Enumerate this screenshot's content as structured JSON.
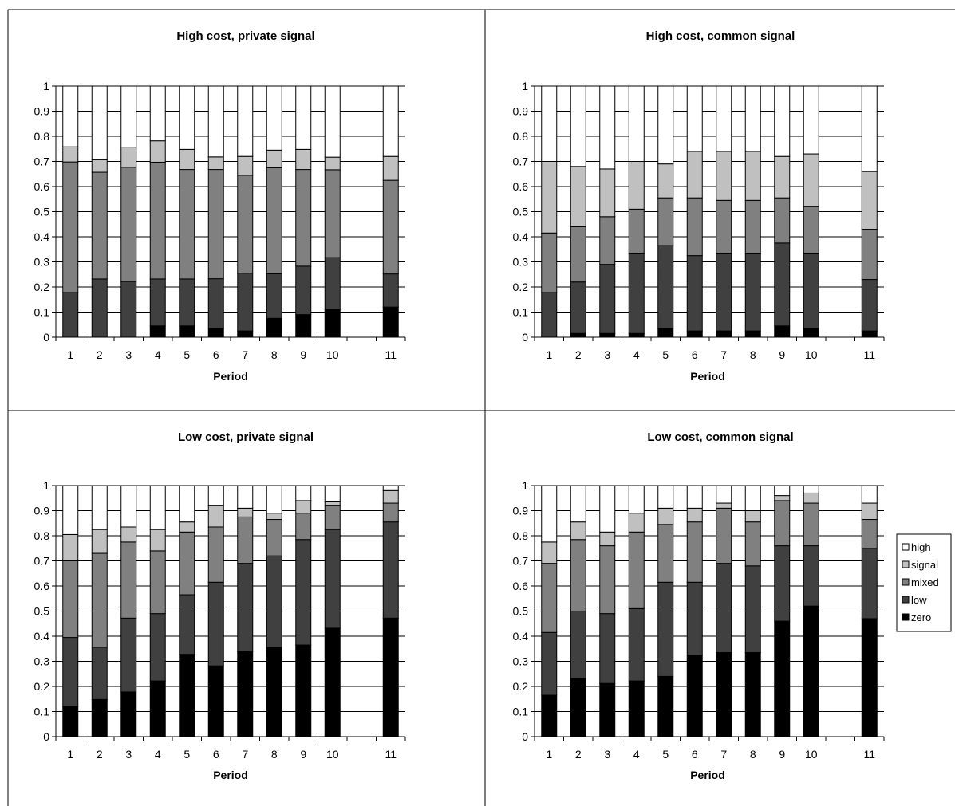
{
  "chart_data": [
    {
      "type": "bar",
      "stacked": true,
      "title": "High cost, private signal",
      "xlabel": "Period",
      "ylabel": "",
      "ylim": [
        0,
        1
      ],
      "yticks": [
        "0",
        "0.1",
        "0.2",
        "0.3",
        "0.4",
        "0.5",
        "0.6",
        "0.7",
        "0.8",
        "0.9",
        "1"
      ],
      "grid": true,
      "categories": [
        "1",
        "2",
        "3",
        "4",
        "5",
        "6",
        "7",
        "8",
        "9",
        "10",
        "11"
      ],
      "series": [
        {
          "name": "zero",
          "values": [
            0.0,
            0.0,
            0.0,
            0.045,
            0.045,
            0.035,
            0.025,
            0.075,
            0.09,
            0.11,
            0.12
          ]
        },
        {
          "name": "low",
          "values": [
            0.178,
            0.232,
            0.222,
            0.187,
            0.187,
            0.198,
            0.23,
            0.178,
            0.193,
            0.207,
            0.132
          ]
        },
        {
          "name": "mixed",
          "values": [
            0.52,
            0.425,
            0.455,
            0.465,
            0.436,
            0.435,
            0.39,
            0.422,
            0.385,
            0.35,
            0.373
          ]
        },
        {
          "name": "signal",
          "values": [
            0.06,
            0.05,
            0.08,
            0.085,
            0.08,
            0.05,
            0.075,
            0.07,
            0.08,
            0.05,
            0.095
          ]
        },
        {
          "name": "high",
          "values": [
            0.242,
            0.293,
            0.243,
            0.218,
            0.252,
            0.282,
            0.28,
            0.255,
            0.252,
            0.283,
            0.28
          ]
        }
      ]
    },
    {
      "type": "bar",
      "stacked": true,
      "title": "High cost, common signal",
      "xlabel": "Period",
      "ylabel": "",
      "ylim": [
        0,
        1
      ],
      "yticks": [
        "0",
        "0.1",
        "0.2",
        "0.3",
        "0.4",
        "0.5",
        "0.6",
        "0.7",
        "0.8",
        "0.9",
        "1"
      ],
      "grid": true,
      "categories": [
        "1",
        "2",
        "3",
        "4",
        "5",
        "6",
        "7",
        "8",
        "9",
        "10",
        "11"
      ],
      "series": [
        {
          "name": "zero",
          "values": [
            0.0,
            0.015,
            0.015,
            0.015,
            0.035,
            0.025,
            0.025,
            0.025,
            0.045,
            0.035,
            0.025
          ]
        },
        {
          "name": "low",
          "values": [
            0.178,
            0.205,
            0.275,
            0.32,
            0.33,
            0.3,
            0.31,
            0.31,
            0.33,
            0.3,
            0.205
          ]
        },
        {
          "name": "mixed",
          "values": [
            0.237,
            0.22,
            0.19,
            0.175,
            0.19,
            0.23,
            0.21,
            0.21,
            0.18,
            0.185,
            0.2
          ]
        },
        {
          "name": "signal",
          "values": [
            0.285,
            0.24,
            0.19,
            0.19,
            0.135,
            0.185,
            0.195,
            0.195,
            0.165,
            0.21,
            0.23
          ]
        },
        {
          "name": "high",
          "values": [
            0.3,
            0.32,
            0.33,
            0.3,
            0.31,
            0.26,
            0.26,
            0.26,
            0.28,
            0.27,
            0.34
          ]
        }
      ]
    },
    {
      "type": "bar",
      "stacked": true,
      "title": "Low cost, private signal",
      "xlabel": "Period",
      "ylabel": "",
      "ylim": [
        0,
        1
      ],
      "yticks": [
        "0",
        "0.1",
        "0.2",
        "0.3",
        "0.4",
        "0.5",
        "0.6",
        "0.7",
        "0.8",
        "0.9",
        "1"
      ],
      "grid": true,
      "categories": [
        "1",
        "2",
        "3",
        "4",
        "5",
        "6",
        "7",
        "8",
        "9",
        "10",
        "11"
      ],
      "series": [
        {
          "name": "zero",
          "values": [
            0.12,
            0.148,
            0.178,
            0.222,
            0.328,
            0.282,
            0.338,
            0.355,
            0.365,
            0.432,
            0.472
          ]
        },
        {
          "name": "low",
          "values": [
            0.275,
            0.208,
            0.294,
            0.268,
            0.237,
            0.333,
            0.352,
            0.365,
            0.42,
            0.393,
            0.383
          ]
        },
        {
          "name": "mixed",
          "values": [
            0.305,
            0.374,
            0.303,
            0.25,
            0.25,
            0.22,
            0.185,
            0.145,
            0.105,
            0.095,
            0.075
          ]
        },
        {
          "name": "signal",
          "values": [
            0.105,
            0.095,
            0.06,
            0.085,
            0.04,
            0.085,
            0.035,
            0.025,
            0.05,
            0.015,
            0.05
          ]
        },
        {
          "name": "high",
          "values": [
            0.195,
            0.175,
            0.165,
            0.175,
            0.145,
            0.08,
            0.09,
            0.11,
            0.06,
            0.065,
            0.02
          ]
        }
      ]
    },
    {
      "type": "bar",
      "stacked": true,
      "title": "Low cost, common signal",
      "xlabel": "Period",
      "ylabel": "",
      "ylim": [
        0,
        1
      ],
      "yticks": [
        "0",
        "0.1",
        "0.2",
        "0.3",
        "0.4",
        "0.5",
        "0.6",
        "0.7",
        "0.8",
        "0.9",
        "1"
      ],
      "grid": true,
      "categories": [
        "1",
        "2",
        "3",
        "4",
        "5",
        "6",
        "7",
        "8",
        "9",
        "10",
        "11"
      ],
      "legend": {
        "position": "right",
        "entries": [
          "high",
          "signal",
          "mixed",
          "low",
          "zero"
        ]
      },
      "series": [
        {
          "name": "zero",
          "values": [
            0.165,
            0.232,
            0.212,
            0.222,
            0.24,
            0.325,
            0.335,
            0.335,
            0.46,
            0.52,
            0.47
          ]
        },
        {
          "name": "low",
          "values": [
            0.25,
            0.268,
            0.278,
            0.288,
            0.375,
            0.29,
            0.355,
            0.345,
            0.3,
            0.24,
            0.28
          ]
        },
        {
          "name": "mixed",
          "values": [
            0.275,
            0.285,
            0.27,
            0.305,
            0.23,
            0.24,
            0.22,
            0.175,
            0.18,
            0.17,
            0.115
          ]
        },
        {
          "name": "signal",
          "values": [
            0.085,
            0.07,
            0.055,
            0.075,
            0.065,
            0.055,
            0.02,
            0.045,
            0.02,
            0.04,
            0.065
          ]
        },
        {
          "name": "high",
          "values": [
            0.225,
            0.145,
            0.185,
            0.11,
            0.09,
            0.09,
            0.07,
            0.1,
            0.04,
            0.03,
            0.07
          ]
        }
      ]
    }
  ],
  "colors": {
    "zero": "#000000",
    "low": "#404040",
    "mixed": "#808080",
    "signal": "#c0c0c0",
    "high": "#ffffff"
  }
}
